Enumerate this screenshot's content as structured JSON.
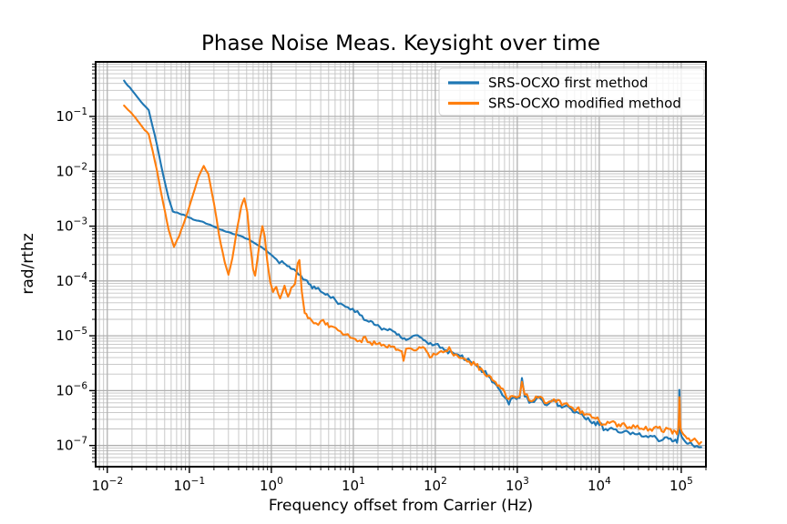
{
  "chart_data": {
    "type": "line",
    "title": "Phase Noise Meas. Keysight over time",
    "xlabel": "Frequency offset from Carrier (Hz)",
    "ylabel": "rad/rthz",
    "xscale": "log",
    "yscale": "log",
    "xlim": [
      0.0072,
      200000
    ],
    "ylim": [
      4.1e-08,
      0.99
    ],
    "x_tick_exponents": [
      -2,
      -1,
      0,
      1,
      2,
      3,
      4,
      5
    ],
    "y_tick_exponents": [
      -1,
      -2,
      -3,
      -4,
      -5,
      -6,
      -7
    ],
    "grid": {
      "major": true,
      "minor": true,
      "major_color": "#b0b0b0",
      "minor_color": "#c3c3c3"
    },
    "legend": {
      "location": "upper right"
    },
    "frame_color": "#000000",
    "noise_seed": 7,
    "series": [
      {
        "name": "SRS-OCXO first method",
        "color": "#1f77b4",
        "noise": [
          [
            0.014,
            1.2,
            0.008
          ],
          [
            1.2,
            2,
            0.02
          ],
          [
            2,
            13,
            0.05
          ],
          [
            13,
            100,
            0.035
          ],
          [
            100,
            900,
            0.045
          ],
          [
            900,
            93000,
            0.055
          ],
          [
            93000,
            103000,
            0.015
          ],
          [
            103000,
            200000,
            0.05
          ]
        ],
        "points": [
          [
            0.016,
            0.45
          ],
          [
            0.022,
            0.25
          ],
          [
            0.027,
            0.17
          ],
          [
            0.032,
            0.13
          ],
          [
            0.04,
            0.032
          ],
          [
            0.048,
            0.0085
          ],
          [
            0.056,
            0.0032
          ],
          [
            0.063,
            0.00185
          ],
          [
            0.075,
            0.0017
          ],
          [
            0.09,
            0.00155
          ],
          [
            0.105,
            0.0014
          ],
          [
            0.115,
            0.0013
          ],
          [
            0.13,
            0.00125
          ],
          [
            0.15,
            0.00118
          ],
          [
            0.17,
            0.00108
          ],
          [
            0.2,
            0.00098
          ],
          [
            0.24,
            0.00086
          ],
          [
            0.28,
            0.00079
          ],
          [
            0.33,
            0.00074
          ],
          [
            0.38,
            0.0007
          ],
          [
            0.45,
            0.00064
          ],
          [
            0.52,
            0.00058
          ],
          [
            0.6,
            0.00051
          ],
          [
            0.7,
            0.00044
          ],
          [
            0.8,
            0.00039
          ],
          [
            0.92,
            0.00033
          ],
          [
            1.05,
            0.00028
          ],
          [
            1.15,
            0.00025
          ],
          [
            1.25,
            0.00021
          ],
          [
            1.35,
            0.00023
          ],
          [
            1.5,
            0.0002
          ],
          [
            1.65,
            0.000185
          ],
          [
            1.8,
            0.000165
          ],
          [
            2.0,
            0.00015
          ],
          [
            2.3,
            0.000125
          ],
          [
            2.6,
            0.000105
          ],
          [
            3.0,
            8.6e-05
          ],
          [
            3.5,
            7.2e-05
          ],
          [
            4.0,
            6.4e-05
          ],
          [
            4.6,
            5.6e-05
          ],
          [
            5.3,
            4.9e-05
          ],
          [
            6.1,
            4.4e-05
          ],
          [
            7.0,
            3.9e-05
          ],
          [
            8.0,
            3.4e-05
          ],
          [
            9.2,
            3e-05
          ],
          [
            10.5,
            2.7e-05
          ],
          [
            12,
            2.4e-05
          ],
          [
            13.5,
            1.95e-05
          ],
          [
            15.5,
            1.8e-05
          ],
          [
            18,
            1.6e-05
          ],
          [
            21,
            1.45e-05
          ],
          [
            25,
            1.3e-05
          ],
          [
            29,
            1.28e-05
          ],
          [
            34,
            1.05e-05
          ],
          [
            40,
            8.8e-06
          ],
          [
            44,
            8.4e-06
          ],
          [
            50,
            9.2e-06
          ],
          [
            57,
            1.02e-05
          ],
          [
            65,
            9.5e-06
          ],
          [
            75,
            8.2e-06
          ],
          [
            87,
            7.4e-06
          ],
          [
            100,
            7e-06
          ],
          [
            115,
            6e-06
          ],
          [
            130,
            5.4e-06
          ],
          [
            150,
            5.2e-06
          ],
          [
            170,
            4.7e-06
          ],
          [
            200,
            4.2e-06
          ],
          [
            240,
            3.6e-06
          ],
          [
            280,
            3.2e-06
          ],
          [
            330,
            2.7e-06
          ],
          [
            390,
            2.2e-06
          ],
          [
            450,
            1.8e-06
          ],
          [
            520,
            1.4e-06
          ],
          [
            560,
            1.25e-06
          ],
          [
            620,
            1e-06
          ],
          [
            700,
            7.6e-07
          ],
          [
            790,
            5.6e-07
          ],
          [
            870,
            7.3e-07
          ],
          [
            980,
            7e-07
          ],
          [
            1070,
            7.4e-07
          ],
          [
            1140,
            1.7e-06
          ],
          [
            1230,
            7.8e-07
          ],
          [
            1400,
            6e-07
          ],
          [
            1600,
            6.2e-07
          ],
          [
            1900,
            7.3e-07
          ],
          [
            2300,
            5.4e-07
          ],
          [
            2800,
            6.5e-07
          ],
          [
            3500,
            4.9e-07
          ],
          [
            4000,
            5.4e-07
          ],
          [
            4600,
            4.5e-07
          ],
          [
            5300,
            4.1e-07
          ],
          [
            6200,
            3.7e-07
          ],
          [
            7300,
            3.2e-07
          ],
          [
            8600,
            2.7e-07
          ],
          [
            10000,
            2.35e-07
          ],
          [
            12000,
            2e-07
          ],
          [
            14000,
            2.1e-07
          ],
          [
            17000,
            1.75e-07
          ],
          [
            20000,
            1.8e-07
          ],
          [
            24000,
            1.6e-07
          ],
          [
            29000,
            1.6e-07
          ],
          [
            35000,
            1.45e-07
          ],
          [
            42000,
            1.5e-07
          ],
          [
            50000,
            1.35e-07
          ],
          [
            60000,
            1.28e-07
          ],
          [
            70000,
            1.32e-07
          ],
          [
            78000,
            1.18e-07
          ],
          [
            85000,
            1.28e-07
          ],
          [
            89000,
            1.12e-07
          ],
          [
            92000,
            1.5e-07
          ],
          [
            93500,
            2.6e-07
          ],
          [
            94700,
            1.03e-06
          ],
          [
            95500,
            6.8e-07
          ],
          [
            96500,
            2.6e-07
          ],
          [
            98000,
            1.7e-07
          ],
          [
            101000,
            1.45e-07
          ],
          [
            106000,
            1.3e-07
          ],
          [
            113000,
            1.15e-07
          ],
          [
            123000,
            1.08e-07
          ],
          [
            137000,
            1.02e-07
          ],
          [
            155000,
            9.8e-08
          ],
          [
            175000,
            9.3e-08
          ]
        ]
      },
      {
        "name": "SRS-OCXO modified method",
        "color": "#ff7f0e",
        "noise": [
          [
            0.014,
            0.95,
            0.01
          ],
          [
            0.95,
            2.35,
            0.03
          ],
          [
            2.35,
            13,
            0.055
          ],
          [
            13,
            100,
            0.05
          ],
          [
            100,
            900,
            0.05
          ],
          [
            900,
            93000,
            0.06
          ],
          [
            93000,
            103000,
            0.015
          ],
          [
            103000,
            200000,
            0.05
          ]
        ],
        "points": [
          [
            0.016,
            0.158
          ],
          [
            0.022,
            0.095
          ],
          [
            0.027,
            0.063
          ],
          [
            0.032,
            0.047
          ],
          [
            0.04,
            0.011
          ],
          [
            0.048,
            0.0026
          ],
          [
            0.056,
            0.00085
          ],
          [
            0.065,
            0.00042
          ],
          [
            0.075,
            0.00065
          ],
          [
            0.09,
            0.0014
          ],
          [
            0.11,
            0.0036
          ],
          [
            0.13,
            0.008
          ],
          [
            0.15,
            0.0125
          ],
          [
            0.17,
            0.009
          ],
          [
            0.2,
            0.0026
          ],
          [
            0.23,
            0.0007
          ],
          [
            0.27,
            0.00022
          ],
          [
            0.3,
            0.00013
          ],
          [
            0.335,
            0.00026
          ],
          [
            0.38,
            0.00085
          ],
          [
            0.43,
            0.0023
          ],
          [
            0.47,
            0.0032
          ],
          [
            0.51,
            0.0018
          ],
          [
            0.55,
            0.0005
          ],
          [
            0.6,
            0.00016
          ],
          [
            0.635,
            0.000125
          ],
          [
            0.68,
            0.00026
          ],
          [
            0.73,
            0.0006
          ],
          [
            0.78,
            0.001
          ],
          [
            0.83,
            0.00065
          ],
          [
            0.89,
            0.00024
          ],
          [
            0.97,
            9.5e-05
          ],
          [
            1.05,
            6.3e-05
          ],
          [
            1.15,
            7.8e-05
          ],
          [
            1.28,
            4.8e-05
          ],
          [
            1.45,
            8.2e-05
          ],
          [
            1.6,
            5.2e-05
          ],
          [
            1.75,
            7.5e-05
          ],
          [
            1.95,
            9e-05
          ],
          [
            2.1,
            0.00021
          ],
          [
            2.2,
            0.00024
          ],
          [
            2.35,
            6.5e-05
          ],
          [
            2.55,
            2.6e-05
          ],
          [
            2.8,
            2.1e-05
          ],
          [
            3.1,
            1.9e-05
          ],
          [
            3.5,
            1.7e-05
          ],
          [
            4.0,
            1.85e-05
          ],
          [
            4.6,
            1.6e-05
          ],
          [
            5.3,
            1.5e-05
          ],
          [
            6.1,
            1.4e-05
          ],
          [
            7.0,
            1.2e-05
          ],
          [
            8.0,
            1.05e-05
          ],
          [
            9.2,
            9.2e-06
          ],
          [
            10.5,
            8.8e-06
          ],
          [
            12,
            8.2e-06
          ],
          [
            14,
            9.6e-06
          ],
          [
            16,
            7.6e-06
          ],
          [
            19,
            7e-06
          ],
          [
            22,
            6.6e-06
          ],
          [
            26,
            6.1e-06
          ],
          [
            30,
            6.4e-06
          ],
          [
            35,
            5.6e-06
          ],
          [
            39,
            5.2e-06
          ],
          [
            41,
            3.5e-06
          ],
          [
            44,
            5.8e-06
          ],
          [
            50,
            5.9e-06
          ],
          [
            58,
            5.4e-06
          ],
          [
            67,
            6e-06
          ],
          [
            78,
            5.2e-06
          ],
          [
            90,
            4.1e-06
          ],
          [
            105,
            4.6e-06
          ],
          [
            125,
            5e-06
          ],
          [
            148,
            6.2e-06
          ],
          [
            160,
            4.8e-06
          ],
          [
            185,
            4.4e-06
          ],
          [
            220,
            3.9e-06
          ],
          [
            260,
            3.4e-06
          ],
          [
            310,
            2.9e-06
          ],
          [
            380,
            2.3e-06
          ],
          [
            450,
            1.9e-06
          ],
          [
            520,
            1.5e-06
          ],
          [
            600,
            1.25e-06
          ],
          [
            700,
            9.5e-07
          ],
          [
            790,
            7e-07
          ],
          [
            870,
            8e-07
          ],
          [
            980,
            7.5e-07
          ],
          [
            1070,
            8e-07
          ],
          [
            1140,
            1.45e-06
          ],
          [
            1230,
            8.5e-07
          ],
          [
            1400,
            6.6e-07
          ],
          [
            1600,
            6.8e-07
          ],
          [
            1900,
            7.8e-07
          ],
          [
            2300,
            5.9e-07
          ],
          [
            2800,
            7e-07
          ],
          [
            3500,
            5.4e-07
          ],
          [
            4000,
            5.9e-07
          ],
          [
            4600,
            5e-07
          ],
          [
            5300,
            4.6e-07
          ],
          [
            6200,
            4.2e-07
          ],
          [
            7300,
            3.7e-07
          ],
          [
            8600,
            3.2e-07
          ],
          [
            10000,
            2.8e-07
          ],
          [
            12000,
            2.4e-07
          ],
          [
            14000,
            2.7e-07
          ],
          [
            16500,
            2.2e-07
          ],
          [
            19000,
            2.5e-07
          ],
          [
            22000,
            2.05e-07
          ],
          [
            26000,
            2.35e-07
          ],
          [
            31000,
            2e-07
          ],
          [
            37000,
            2.2e-07
          ],
          [
            44000,
            1.85e-07
          ],
          [
            52000,
            2.1e-07
          ],
          [
            61000,
            1.75e-07
          ],
          [
            70000,
            2e-07
          ],
          [
            78000,
            1.65e-07
          ],
          [
            85000,
            1.8e-07
          ],
          [
            89000,
            1.6e-07
          ],
          [
            92000,
            2e-07
          ],
          [
            93500,
            3.2e-07
          ],
          [
            94700,
            7.6e-07
          ],
          [
            95500,
            6.5e-07
          ],
          [
            96500,
            3.2e-07
          ],
          [
            98000,
            2.1e-07
          ],
          [
            101000,
            1.8e-07
          ],
          [
            106000,
            1.6e-07
          ],
          [
            113000,
            1.45e-07
          ],
          [
            123000,
            1.35e-07
          ],
          [
            137000,
            1.25e-07
          ],
          [
            155000,
            1.2e-07
          ],
          [
            175000,
            1.15e-07
          ]
        ]
      }
    ]
  }
}
